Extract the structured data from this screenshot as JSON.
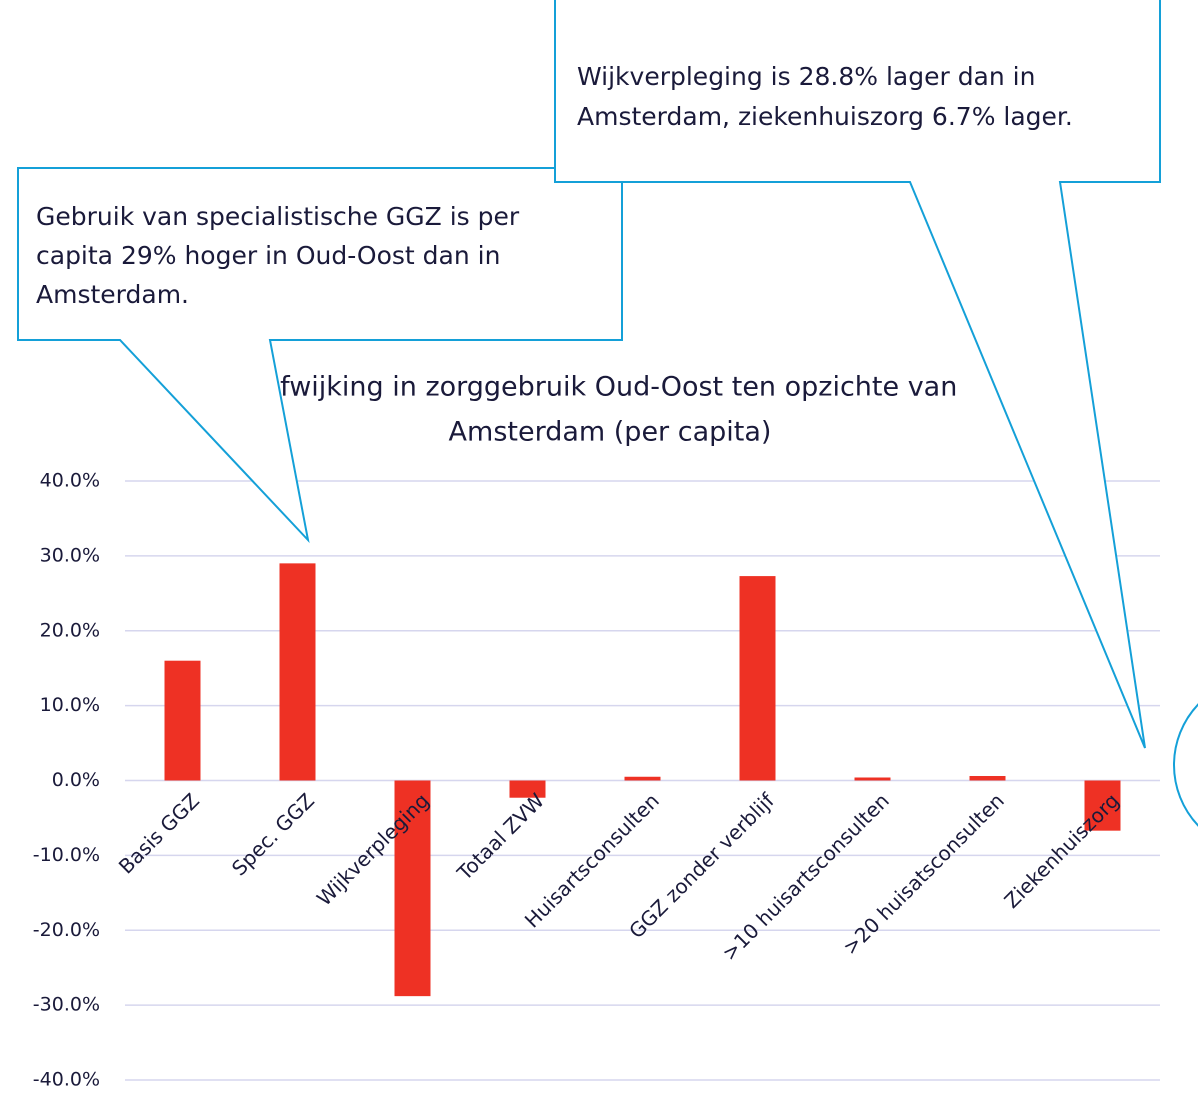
{
  "chart_data": {
    "type": "bar",
    "title": [
      "Afwijking in zorggebruik Oud-Oost ten opzichte van",
      "Amsterdam (per capita)"
    ],
    "categories": [
      "Basis GGZ",
      "Spec. GGZ",
      "Wijkverpleging",
      "Totaal ZVW",
      "Huisartsconsulten",
      "GGZ zonder verblijf",
      ">10 huisartsconsulten",
      ">20 huisatsconsulten",
      "Ziekenhuiszorg"
    ],
    "values": [
      16.0,
      29.0,
      -28.8,
      -2.3,
      0.5,
      27.3,
      0.4,
      0.6,
      -6.7
    ],
    "color": "#ee3124",
    "ylim": [
      -40,
      40
    ],
    "yticks": [
      {
        "value": 40,
        "label": "40.0%"
      },
      {
        "value": 30,
        "label": "30.0%"
      },
      {
        "value": 20,
        "label": "20.0%"
      },
      {
        "value": 10,
        "label": "10.0%"
      },
      {
        "value": 0,
        "label": "0.0%"
      },
      {
        "value": -10,
        "label": "-10.0%"
      },
      {
        "value": -20,
        "label": "-20.0%"
      },
      {
        "value": -30,
        "label": "-30.0%"
      },
      {
        "value": -40,
        "label": "-40.0%"
      }
    ],
    "grid": true,
    "annotations": [
      {
        "lines": [
          "Gebruik van specialistische GGZ is per",
          "capita 29% hoger in Oud-Oost dan in",
          "Amsterdam."
        ]
      },
      {
        "lines": [
          "Wijkverpleging is 28.8% lager dan in",
          "Amsterdam, ziekenhuiszorg 6.7% lager."
        ]
      }
    ]
  }
}
